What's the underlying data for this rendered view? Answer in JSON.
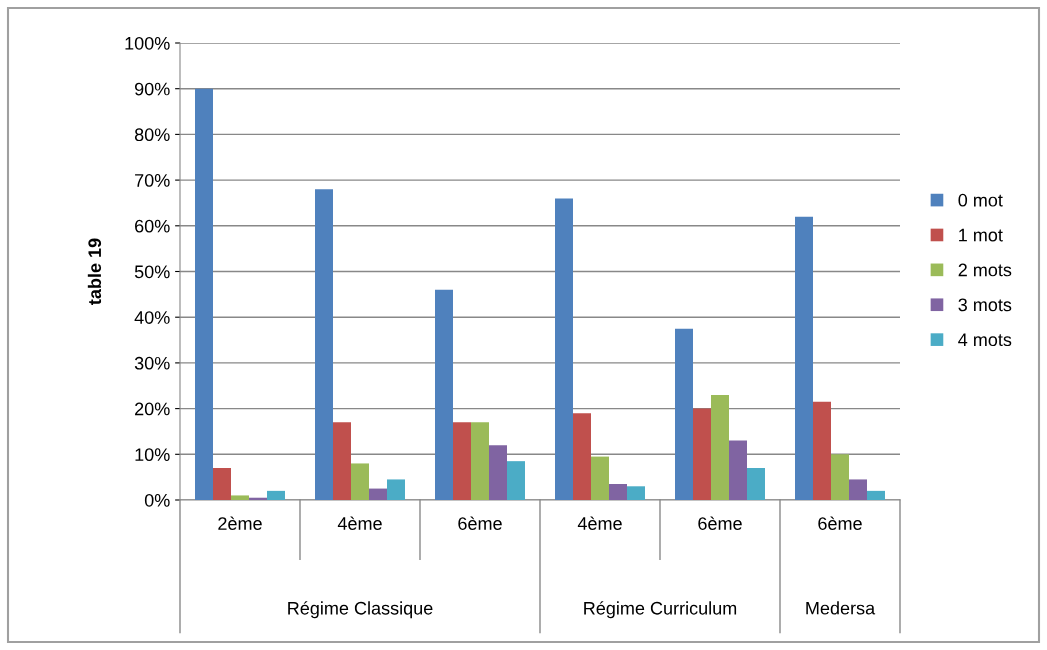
{
  "chart_data": {
    "type": "bar",
    "ylabel": "table 19",
    "categories": [
      "2ème",
      "4ème",
      "6ème",
      "4ème",
      "6ème",
      "6ème"
    ],
    "series": [
      {
        "name": "0 mot",
        "color": "#4f81bd",
        "values": [
          90,
          68,
          46,
          66,
          37.5,
          62
        ]
      },
      {
        "name": "1 mot",
        "color": "#c0504d",
        "values": [
          7,
          17,
          17,
          19,
          20,
          21.5
        ]
      },
      {
        "name": "2 mots",
        "color": "#9bbb59",
        "values": [
          1,
          8,
          17,
          9.5,
          23,
          10
        ]
      },
      {
        "name": "3 mots",
        "color": "#8064a2",
        "values": [
          0.5,
          2.5,
          12,
          3.5,
          13,
          4.5
        ]
      },
      {
        "name": "4 mots",
        "color": "#4bacc6",
        "values": [
          2,
          4.5,
          8.5,
          3,
          7,
          2
        ]
      }
    ],
    "annotations": [
      "Régime Classique",
      "Régime Curriculum",
      "Medersa"
    ],
    "ylim": [
      0,
      100
    ],
    "yticks": [
      {
        "value": 0,
        "label": "0%"
      },
      {
        "value": 10,
        "label": "10%"
      },
      {
        "value": 20,
        "label": "20%"
      },
      {
        "value": 30,
        "label": "30%"
      },
      {
        "value": 40,
        "label": "40%"
      },
      {
        "value": 50,
        "label": "50%"
      },
      {
        "value": 60,
        "label": "60%"
      },
      {
        "value": 70,
        "label": "70%"
      },
      {
        "value": 80,
        "label": "80%"
      },
      {
        "value": 90,
        "label": "90%"
      },
      {
        "value": 100,
        "label": "100%"
      }
    ],
    "grid": "y",
    "legend": "right"
  }
}
